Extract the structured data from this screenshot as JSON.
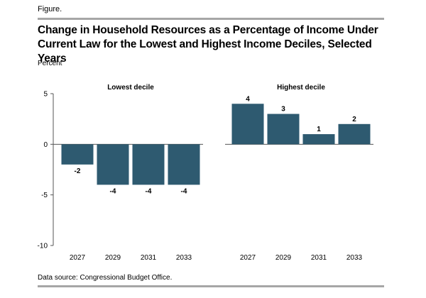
{
  "figure_label": "Figure.",
  "source": "Data source: Congressional Budget Office.",
  "colors": {
    "bar": "#2e5a70",
    "axis": "#555555",
    "rule": "#a6a6a6"
  },
  "chart_data": {
    "type": "bar",
    "title": "Change in Household Resources as a Percentage of Income Under Current Law for the Lowest and Highest Income Deciles, Selected Years",
    "ylabel": "Percent",
    "xlabel": "",
    "ylim": [
      -10,
      5
    ],
    "yticks": [
      5,
      0,
      -5,
      -10
    ],
    "grid": false,
    "panels": [
      {
        "name": "Lowest decile",
        "categories": [
          "2027",
          "2029",
          "2031",
          "2033"
        ],
        "values": [
          -2,
          -4,
          -4,
          -4
        ]
      },
      {
        "name": "Highest decile",
        "categories": [
          "2027",
          "2029",
          "2031",
          "2033"
        ],
        "values": [
          4,
          3,
          1,
          2
        ]
      }
    ]
  }
}
